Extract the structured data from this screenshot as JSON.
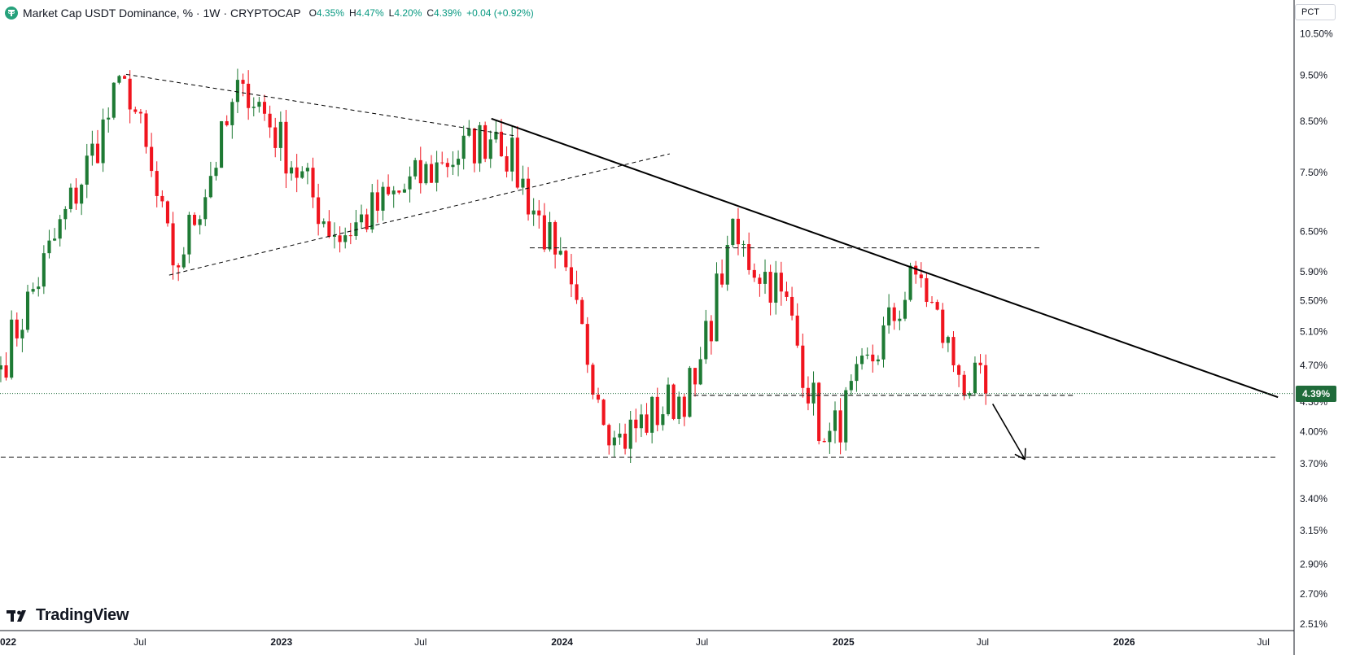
{
  "header": {
    "symbol": "Market Cap USDT Dominance, %",
    "interval": "1W",
    "exchange": "CRYPTOCAP",
    "open_label": "O",
    "open": "4.35%",
    "high_label": "H",
    "high": "4.47%",
    "low_label": "L",
    "low": "4.20%",
    "close_label": "C",
    "close": "4.39%",
    "change": "+0.04 (+0.92%)"
  },
  "scale_mode_label": "PCT",
  "brand": "TradingView",
  "last_price_label": "4.39%",
  "colors": {
    "up": "#1e7a34",
    "down": "#f0141e",
    "trendline": "#000000",
    "dashed": "#2a2a2a",
    "last_price_bg": "#1f6b3a"
  },
  "chart_data": {
    "type": "candlestick",
    "title": "Market Cap USDT Dominance, %",
    "interval": "1W",
    "y_scale": "log",
    "y_ticks": [
      "10.50%",
      "9.50%",
      "8.50%",
      "7.50%",
      "6.50%",
      "5.90%",
      "5.50%",
      "5.10%",
      "4.70%",
      "4.30%",
      "4.00%",
      "3.70%",
      "3.40%",
      "3.15%",
      "2.90%",
      "2.70%",
      "2.51%"
    ],
    "y_tick_values": [
      10.5,
      9.5,
      8.5,
      7.5,
      6.5,
      5.9,
      5.5,
      5.1,
      4.7,
      4.3,
      4.0,
      3.7,
      3.4,
      3.15,
      2.9,
      2.7,
      2.51
    ],
    "x_ticks": [
      {
        "label": "022",
        "date": "2022-01-01",
        "bold": true
      },
      {
        "label": "Jul",
        "date": "2022-07-01",
        "bold": false
      },
      {
        "label": "2023",
        "date": "2023-01-01",
        "bold": true
      },
      {
        "label": "Jul",
        "date": "2023-07-01",
        "bold": false
      },
      {
        "label": "2024",
        "date": "2024-01-01",
        "bold": true
      },
      {
        "label": "Jul",
        "date": "2024-07-01",
        "bold": false
      },
      {
        "label": "2025",
        "date": "2025-01-01",
        "bold": true
      },
      {
        "label": "Jul",
        "date": "2025-07-01",
        "bold": false
      },
      {
        "label": "2026",
        "date": "2026-01-01",
        "bold": true
      },
      {
        "label": "Jul",
        "date": "2026-07-01",
        "bold": false
      }
    ],
    "x_range": [
      "2021-12-31",
      "2026-08-10"
    ],
    "y_range": [
      2.47,
      11.4
    ],
    "last_close": 4.39,
    "key_points": [
      {
        "date": "2022-01-01",
        "close": 4.7
      },
      {
        "date": "2022-06-13",
        "close": 9.5
      },
      {
        "date": "2022-08-15",
        "close": 5.9
      },
      {
        "date": "2022-11-14",
        "close": 9.4
      },
      {
        "date": "2023-03-13",
        "close": 6.4
      },
      {
        "date": "2023-07-31",
        "close": 7.7
      },
      {
        "date": "2023-10-09",
        "close": 8.3
      },
      {
        "date": "2023-12-25",
        "close": 6.1
      },
      {
        "date": "2024-03-11",
        "close": 3.9
      },
      {
        "date": "2024-06-24",
        "close": 4.5
      },
      {
        "date": "2024-08-05",
        "close": 6.4
      },
      {
        "date": "2024-10-14",
        "close": 5.6
      },
      {
        "date": "2024-12-09",
        "close": 3.85
      },
      {
        "date": "2025-04-07",
        "close": 5.9
      },
      {
        "date": "2025-06-02",
        "close": 4.55
      },
      {
        "date": "2025-07-07",
        "close": 4.39
      }
    ],
    "drawings": {
      "downtrend_line": [
        {
          "date": "2023-10-01",
          "value": 8.55
        },
        {
          "date": "2026-07-20",
          "value": 4.35
        }
      ],
      "triangle_upper": [
        {
          "date": "2022-06-13",
          "value": 9.52
        },
        {
          "date": "2023-11-01",
          "value": 8.2
        }
      ],
      "triangle_lower": [
        {
          "date": "2022-08-08",
          "value": 5.85
        },
        {
          "date": "2024-05-20",
          "value": 7.85
        }
      ],
      "resistance_h": {
        "value": 6.25,
        "from": "2023-11-20",
        "to": "2025-09-15"
      },
      "support_h1": {
        "value": 4.37,
        "from": "2024-06-20",
        "to": "2025-10-30"
      },
      "support_h2": {
        "value": 3.76,
        "from": "2022-01-01",
        "to": "2026-07-20"
      },
      "arrow": [
        {
          "date": "2025-07-14",
          "value": 4.28
        },
        {
          "date": "2025-08-25",
          "value": 3.74
        }
      ]
    }
  }
}
